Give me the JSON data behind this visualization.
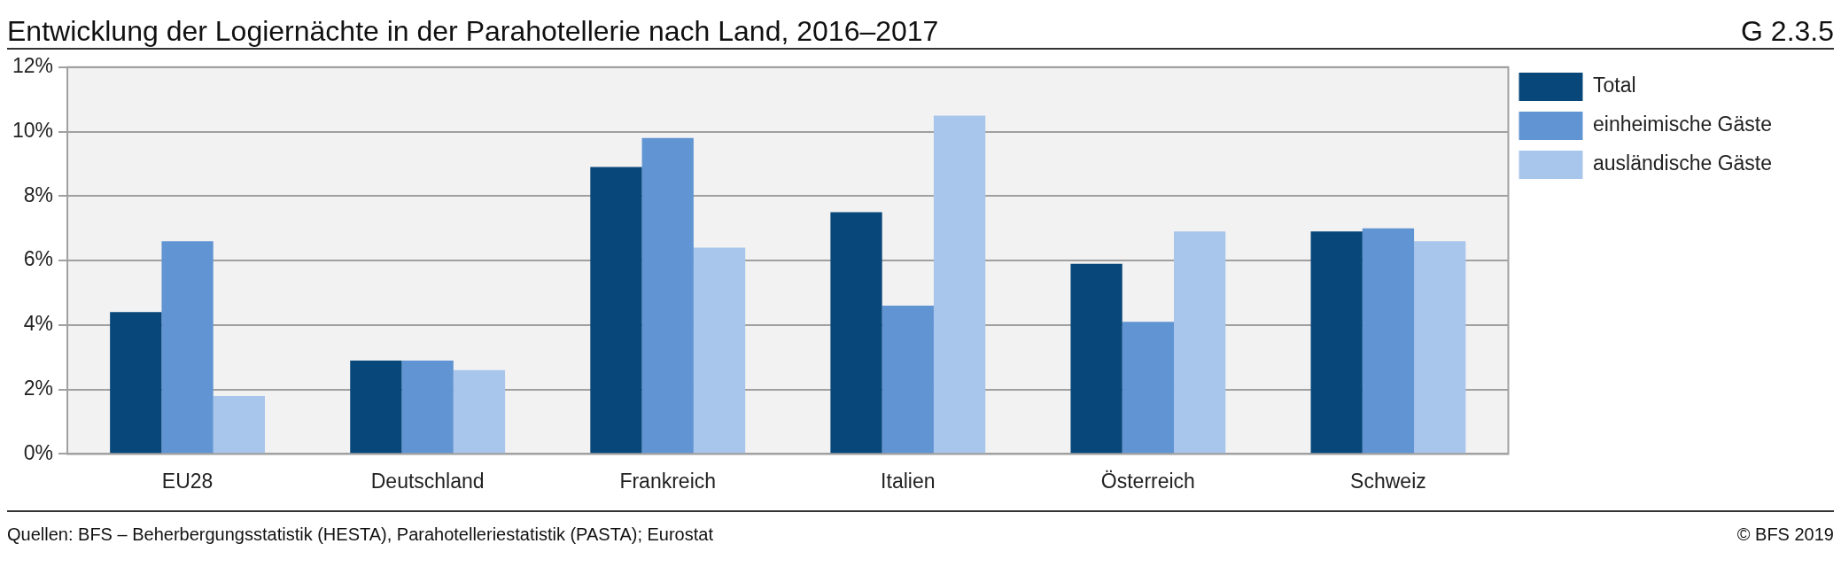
{
  "chart_data": {
    "type": "bar",
    "title": "Entwicklung der Logiernächte in der Parahotellerie nach Land, 2016–2017",
    "categories": [
      "EU28",
      "Deutschland",
      "Frankreich",
      "Italien",
      "Österreich",
      "Schweiz"
    ],
    "series": [
      {
        "name": "Total",
        "color": "#08477a",
        "values": [
          4.4,
          2.9,
          8.9,
          7.5,
          5.9,
          6.9
        ]
      },
      {
        "name": "einheimische Gäste",
        "color": "#6194d3",
        "values": [
          6.6,
          2.9,
          9.8,
          4.6,
          4.1,
          7.0
        ]
      },
      {
        "name": "ausländische Gäste",
        "color": "#a8c6eb",
        "values": [
          1.8,
          2.6,
          6.4,
          10.5,
          6.9,
          6.6
        ]
      }
    ],
    "ylim": [
      0,
      12
    ],
    "yticks": [
      {
        "value": 0,
        "label": "0%"
      },
      {
        "value": 2,
        "label": "2%"
      },
      {
        "value": 4,
        "label": "4%"
      },
      {
        "value": 6,
        "label": "6%"
      },
      {
        "value": 8,
        "label": "8%"
      },
      {
        "value": 10,
        "label": "10%"
      },
      {
        "value": 12,
        "label": "12%"
      }
    ],
    "grid": "y",
    "legend": "right",
    "annotations": [
      "G 2.3.5",
      "Quellen: BFS – Beherbergungsstatistik (HESTA), Parahotelleriestatistik (PASTA); Eurostat",
      "© BFS 2019"
    ]
  }
}
